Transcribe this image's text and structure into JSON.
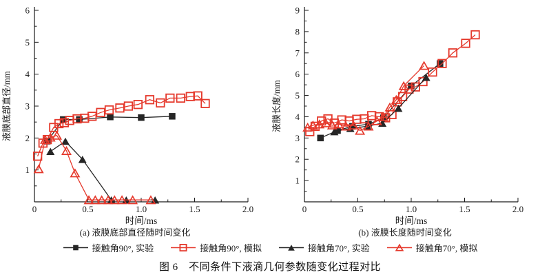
{
  "caption": "图 6　不同条件下液滴几何参数随变化过程对比",
  "colors": {
    "experiment_black": "#262626",
    "simulation_red": "#e5392c",
    "axis": "#1a1a1a"
  },
  "chart_data": [
    {
      "id": "a",
      "type": "line",
      "title": "(a) 液膜底部直径随时间变化",
      "xlabel": "时间/ms",
      "ylabel": "液膜底部直径/mm",
      "xlim": [
        0,
        2.0
      ],
      "ylim": [
        0,
        6
      ],
      "xticks": [
        0,
        0.5,
        1.0,
        1.5,
        2.0
      ],
      "yticks": [
        1,
        2,
        3,
        4,
        5,
        6
      ],
      "x_minor_step": 0.25,
      "y_minor_step": 0.5,
      "grid": false,
      "series": [
        {
          "name": "接触角90°, 实验",
          "marker": "square-filled",
          "color": "#262626",
          "x": [
            0.12,
            0.27,
            0.42,
            0.71,
            1.0,
            1.29
          ],
          "y": [
            1.9,
            2.58,
            2.58,
            2.66,
            2.64,
            2.68
          ]
        },
        {
          "name": "接触角90°, 模拟",
          "marker": "square-open",
          "color": "#e5392c",
          "x": [
            0.03,
            0.08,
            0.12,
            0.18,
            0.23,
            0.28,
            0.33,
            0.4,
            0.47,
            0.54,
            0.62,
            0.7,
            0.8,
            0.88,
            0.97,
            1.08,
            1.18,
            1.27,
            1.37,
            1.46,
            1.53,
            1.6
          ],
          "y": [
            1.43,
            1.84,
            1.95,
            2.33,
            2.45,
            2.48,
            2.55,
            2.6,
            2.62,
            2.68,
            2.8,
            2.88,
            2.94,
            3.0,
            3.05,
            3.2,
            3.1,
            3.25,
            3.25,
            3.3,
            3.32,
            3.08
          ]
        },
        {
          "name": "接触角70°, 实验",
          "marker": "triangle-filled",
          "color": "#262626",
          "x": [
            0.15,
            0.29,
            0.45,
            0.72,
            0.86,
            1.13
          ],
          "y": [
            1.58,
            1.9,
            1.33,
            0.06,
            0.06,
            0.06
          ]
        },
        {
          "name": "接触角70°, 模拟",
          "marker": "triangle-open",
          "color": "#e5392c",
          "x": [
            0.04,
            0.1,
            0.15,
            0.21,
            0.3,
            0.38,
            0.51,
            0.57,
            0.63,
            0.69,
            0.75,
            0.82,
            0.92,
            1.09
          ],
          "y": [
            1.03,
            1.95,
            2.02,
            2.08,
            1.6,
            0.9,
            0.06,
            0.06,
            0.06,
            0.06,
            0.06,
            0.06,
            0.06,
            0.06
          ]
        }
      ]
    },
    {
      "id": "b",
      "type": "line",
      "title": "(b) 液膜长度随时间变化",
      "xlabel": "时间/ms",
      "ylabel": "液膜长度/mm",
      "xlim": [
        0,
        2.0
      ],
      "ylim": [
        0,
        9
      ],
      "xticks": [
        0,
        0.5,
        1.0,
        1.5,
        2.0
      ],
      "yticks": [
        1,
        2,
        3,
        4,
        5,
        6,
        7,
        8,
        9
      ],
      "x_minor_step": 0.25,
      "y_minor_step": 0.5,
      "grid": false,
      "series": [
        {
          "name": "接触角90°, 实验",
          "marker": "square-filled",
          "color": "#262626",
          "x": [
            0.15,
            0.31,
            0.45,
            0.6,
            0.74,
            1.0,
            1.27
          ],
          "y": [
            3.0,
            3.35,
            3.55,
            3.65,
            3.95,
            5.45,
            6.5
          ]
        },
        {
          "name": "接触角90°, 模拟",
          "marker": "square-open",
          "color": "#e5392c",
          "x": [
            0.05,
            0.1,
            0.16,
            0.22,
            0.28,
            0.35,
            0.42,
            0.49,
            0.56,
            0.63,
            0.7,
            0.76,
            0.82,
            0.87,
            0.92,
            0.98,
            1.04,
            1.11,
            1.2,
            1.29,
            1.39,
            1.51,
            1.6
          ],
          "y": [
            3.3,
            3.55,
            3.8,
            3.9,
            3.7,
            3.85,
            3.8,
            3.88,
            3.9,
            4.05,
            4.0,
            3.95,
            4.1,
            4.7,
            4.95,
            5.3,
            5.4,
            5.65,
            6.1,
            6.5,
            7.0,
            7.45,
            7.85
          ]
        },
        {
          "name": "接触角70°, 实验",
          "marker": "triangle-filled",
          "color": "#262626",
          "x": [
            0.28,
            0.43,
            0.59,
            0.73,
            0.88,
            1.14
          ],
          "y": [
            3.3,
            3.45,
            3.55,
            3.7,
            4.4,
            5.85
          ]
        },
        {
          "name": "接触角70°, 模拟",
          "marker": "triangle-open",
          "color": "#e5392c",
          "x": [
            0.03,
            0.08,
            0.14,
            0.2,
            0.26,
            0.32,
            0.39,
            0.46,
            0.52,
            0.6,
            0.68,
            0.74,
            0.8,
            0.86,
            0.93,
            1.12
          ],
          "y": [
            3.5,
            3.6,
            3.65,
            3.7,
            3.6,
            3.65,
            3.55,
            3.6,
            3.35,
            3.55,
            3.8,
            4.0,
            4.45,
            4.8,
            5.45,
            6.4
          ]
        }
      ]
    }
  ]
}
